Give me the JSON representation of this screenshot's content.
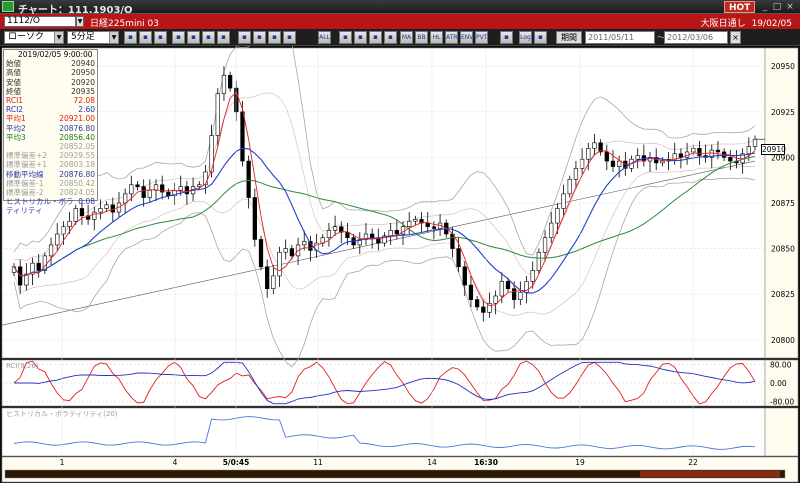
{
  "window": {
    "title": "チャート：111.1903/O",
    "hot_label": "HOT"
  },
  "symbol": {
    "code": "1112/O",
    "name": "日経225mini 03",
    "exchange": "大阪日通し",
    "date": "19/02/05"
  },
  "toolbar": {
    "chart_type": "ローソク",
    "interval": "5分足",
    "kikan_label": "期間",
    "from_date": "2011/05/11",
    "to_date": "2012/03/06",
    "date_separator": "～",
    "icons": [
      "list-icon",
      "zoom-in-icon",
      "zoom-out-icon",
      "chart-icon",
      "arrows-icon",
      "chart-icon",
      "grid-icon",
      "bars-icon",
      "cursor-icon",
      "pen-icon",
      "line-icon",
      "delete-icon",
      "pattern-icon",
      "pattern-icon",
      "color-icon",
      "color-icon",
      "ma-icon",
      "bb-icon",
      "hl-icon",
      "atr-icon",
      "env-icon",
      "pvt-icon",
      "tool-icon",
      "log-icon",
      "scale-icon"
    ],
    "icon_labels": [
      "",
      "",
      "",
      "",
      "",
      "",
      "",
      "",
      "",
      "",
      "",
      "ALL",
      "",
      "",
      "",
      "",
      "MA",
      "BB",
      "HL",
      "ATR",
      "ENV",
      "PVT",
      "",
      "Log",
      ""
    ]
  },
  "info_panel": {
    "timestamp": "2019/02/05  9:00:00",
    "rows": [
      {
        "label": "始値",
        "value": "20940",
        "color": "dark"
      },
      {
        "label": "高値",
        "value": "20950",
        "color": "dark"
      },
      {
        "label": "安値",
        "value": "20920",
        "color": "dark"
      },
      {
        "label": "終値",
        "value": "20935",
        "color": "dark"
      },
      {
        "label": "RCI1",
        "value": "72.08",
        "color": "red"
      },
      {
        "label": "RCI2",
        "value": "2.60",
        "color": "blue"
      },
      {
        "label": "平均1",
        "value": "20921.00",
        "color": "red"
      },
      {
        "label": "平均2",
        "value": "20876.80",
        "color": "navy"
      },
      {
        "label": "平均3",
        "value": "20856.40",
        "color": "green"
      },
      {
        "label": "",
        "value": "20852.05",
        "color": "gray"
      },
      {
        "label": "標準偏差+2",
        "value": "20929.55",
        "color": "gray"
      },
      {
        "label": "標準偏差+1",
        "value": "20803.18",
        "color": "gray"
      },
      {
        "label": "移動平均線",
        "value": "20876.80",
        "color": "navy"
      },
      {
        "label": "標準偏差-1",
        "value": "20850.42",
        "color": "gray"
      },
      {
        "label": "標準偏差-2",
        "value": "20824.05",
        "color": "gray"
      },
      {
        "label": "ヒストリカル・ボラティリティ",
        "value": "0.08",
        "color": "navy"
      }
    ]
  },
  "price_axis": [
    "20950",
    "20925",
    "20900",
    "20875",
    "20850",
    "20825",
    "20800"
  ],
  "current_price": "20910",
  "rci_panel": {
    "label": "RCI(9,26)",
    "ticks": [
      "80.00",
      "0.00",
      "-80.00"
    ]
  },
  "hv_panel": {
    "label": "ヒストリカル・ボラティリティ(20)"
  },
  "x_axis": [
    "1",
    "4",
    "5/0:45",
    "11",
    "14",
    "16:30",
    "19",
    "22"
  ],
  "colors": {
    "titlebar_red": "#b81616",
    "rci1": "#e02020",
    "rci2": "#2030c0",
    "ma1": "#e02020",
    "ma2": "#2040d0",
    "ma3": "#2a8a3a",
    "bb": "#a8a8a8",
    "hv": "#4a78d8"
  },
  "chart_data": {
    "type": "candlestick",
    "ylim": [
      20790,
      20960
    ],
    "candle_color_up": "#ffffff",
    "candle_color_down": "#000000",
    "closes": [
      20840,
      20830,
      20836,
      20842,
      20838,
      20846,
      20852,
      20858,
      20862,
      20865,
      20872,
      20868,
      20866,
      20870,
      20872,
      20874,
      20870,
      20875,
      20880,
      20885,
      20884,
      20878,
      20882,
      20885,
      20881,
      20879,
      20882,
      20884,
      20880,
      20884,
      20885,
      20892,
      20912,
      20935,
      20945,
      20938,
      20925,
      20898,
      20878,
      20855,
      20840,
      20828,
      20835,
      20848,
      20850,
      20846,
      20852,
      20854,
      20849,
      20853,
      20856,
      20860,
      20862,
      20859,
      20856,
      20852,
      20855,
      20858,
      20856,
      20853,
      20857,
      20860,
      20858,
      20862,
      20865,
      20866,
      20864,
      20862,
      20861,
      20864,
      20858,
      20850,
      20840,
      20830,
      20822,
      20818,
      20815,
      20820,
      20824,
      20832,
      20828,
      20822,
      20826,
      20832,
      20838,
      20848,
      20856,
      20864,
      20872,
      20880,
      20888,
      20894,
      20899,
      20905,
      20908,
      20903,
      20898,
      20895,
      20898,
      20894,
      20899,
      20901,
      20898,
      20900,
      20897,
      20898,
      20899,
      20902,
      20900,
      20903,
      20905,
      20901,
      20900,
      20904,
      20903,
      20900,
      20898,
      20897,
      20902,
      20906,
      20910
    ]
  }
}
